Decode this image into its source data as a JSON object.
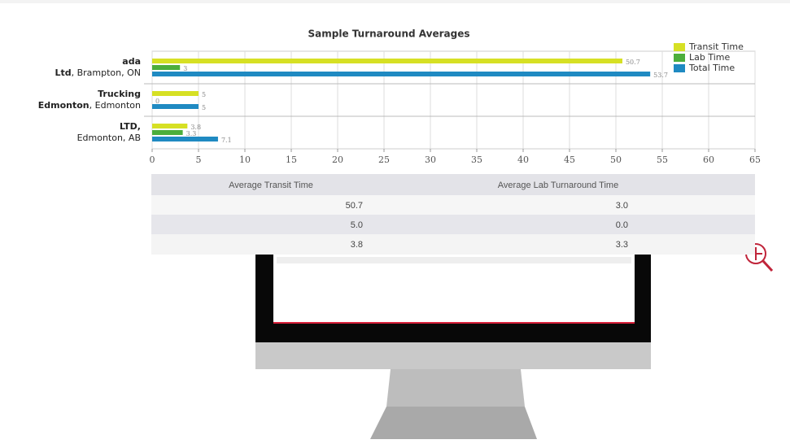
{
  "chart_data": {
    "type": "hbar",
    "title": "Sample Turnaround Averages",
    "categories": [
      [
        {
          "bold": "ada"
        },
        {
          "bold": "Ltd",
          "text": ", Brampton, ON"
        }
      ],
      [
        {
          "bold": "Trucking"
        },
        {
          "bold": "Edmonton",
          "text": ", Edmonton"
        }
      ],
      [
        {
          "bold": "LTD,"
        },
        {
          "text": "Edmonton, AB"
        }
      ]
    ],
    "series": [
      {
        "name": "Transit Time",
        "color": "#d6e024",
        "values": [
          50.7,
          5,
          3.8
        ]
      },
      {
        "name": "Lab Time",
        "color": "#4cae3c",
        "values": [
          3,
          0,
          3.3
        ]
      },
      {
        "name": "Total Time",
        "color": "#1f8ac2",
        "values": [
          53.7,
          5,
          7.1
        ]
      }
    ],
    "xlim": [
      0,
      65
    ],
    "xticks": [
      0,
      5,
      10,
      15,
      20,
      25,
      30,
      35,
      40,
      45,
      50,
      55,
      60,
      65
    ],
    "grid": true,
    "legend": "top-right"
  },
  "table": {
    "header": [
      "Average Transit Time",
      "Average Lab Turnaround Time"
    ],
    "rows": [
      [
        "50.7",
        "3.0"
      ],
      [
        "5.0",
        "0.0"
      ],
      [
        "3.8",
        "3.3"
      ]
    ]
  }
}
